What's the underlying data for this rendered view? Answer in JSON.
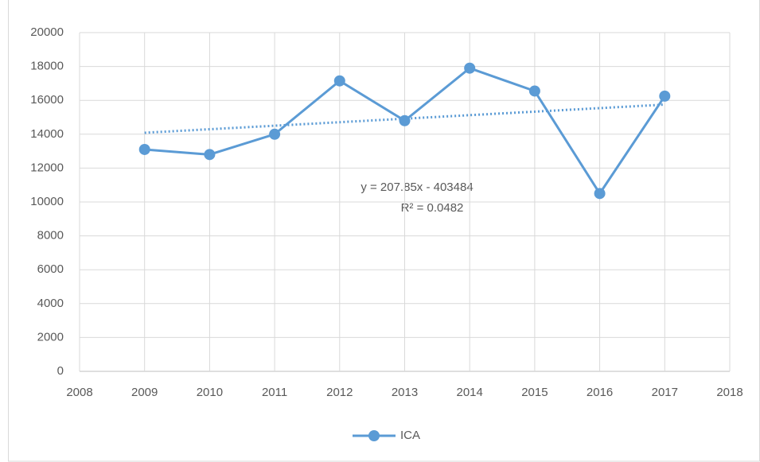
{
  "chart_data": {
    "type": "line",
    "x": [
      2009,
      2010,
      2011,
      2012,
      2013,
      2014,
      2015,
      2016,
      2017
    ],
    "series": [
      {
        "name": "ICA",
        "color": "#5b9bd5",
        "values": [
          13100,
          12800,
          14000,
          17150,
          14800,
          17900,
          16550,
          10500,
          16250
        ]
      }
    ],
    "trendline": {
      "x": [
        2009,
        2017
      ],
      "values": [
        14087,
        15749
      ],
      "color": "#5b9bd5"
    },
    "annotations": [
      "y = 207.85x - 403484",
      "R² = 0.0482"
    ],
    "xlim": [
      2008,
      2018
    ],
    "xticks": [
      2008,
      2009,
      2010,
      2011,
      2012,
      2013,
      2014,
      2015,
      2016,
      2017,
      2018
    ],
    "ylim": [
      0,
      20000
    ],
    "yticks": [
      0,
      2000,
      4000,
      6000,
      8000,
      10000,
      12000,
      14000,
      16000,
      18000,
      20000
    ],
    "grid": true,
    "legend": "bottom"
  }
}
